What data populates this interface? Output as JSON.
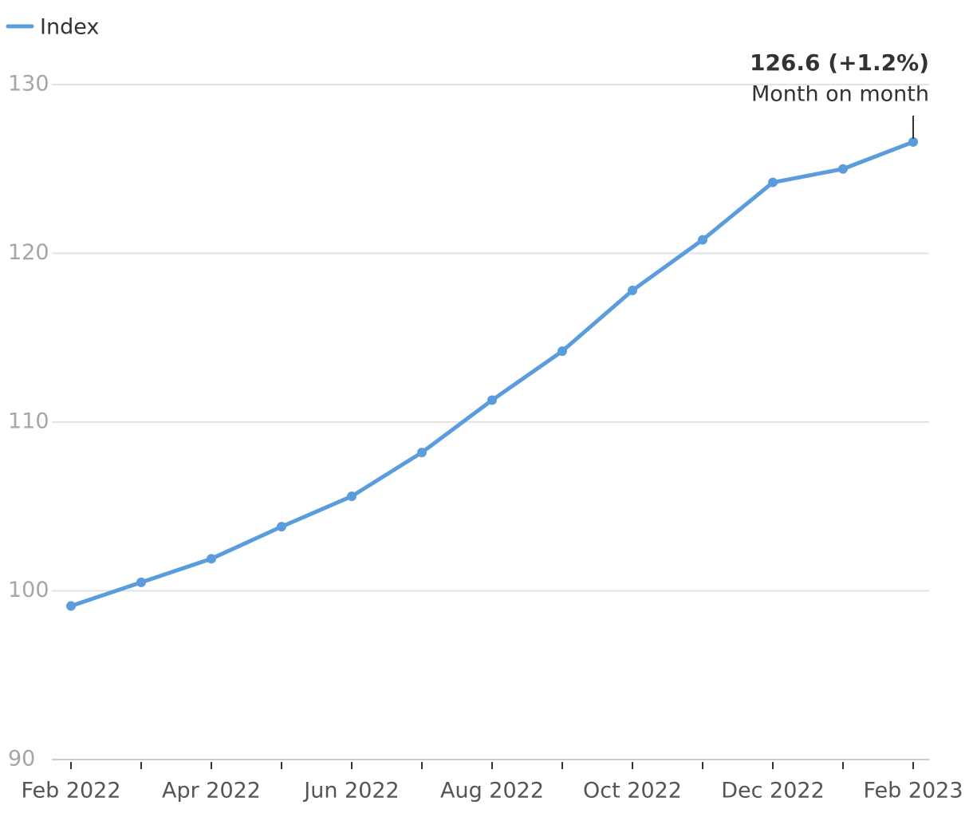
{
  "chart_data": {
    "type": "line",
    "categories": [
      "Feb 2022",
      null,
      "Apr 2022",
      null,
      "Jun 2022",
      null,
      "Aug 2022",
      null,
      "Oct 2022",
      null,
      "Dec 2022",
      null,
      "Feb 2023"
    ],
    "series": [
      {
        "name": "Index",
        "color": "#5b9ddc",
        "values": [
          99.1,
          100.5,
          101.9,
          103.8,
          105.6,
          108.2,
          111.3,
          114.2,
          117.8,
          120.8,
          124.2,
          125.0,
          126.6
        ]
      }
    ],
    "ylim": [
      90,
      130
    ],
    "yticks": [
      90,
      100,
      110,
      120,
      130
    ],
    "grid": true,
    "legend": "top-left",
    "annotation": {
      "label": "126.6 (+1.2%)",
      "text": "Month on month"
    }
  }
}
